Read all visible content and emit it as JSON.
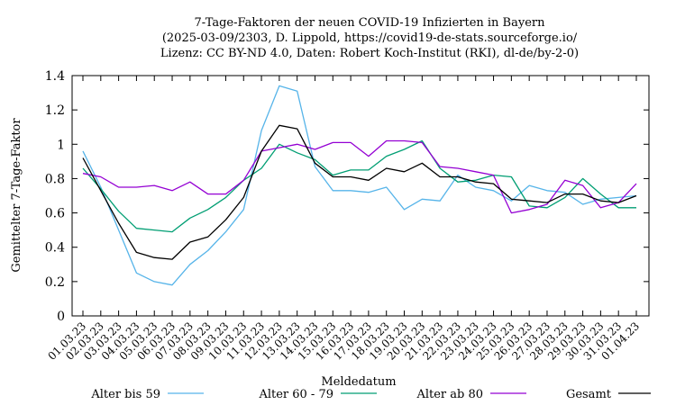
{
  "chart_data": {
    "type": "line",
    "title_lines": [
      "7-Tage-Faktoren der neuen COVID-19 Infizierten in Bayern",
      "(2025-03-09/2303, D. Lippold, https://covid19-de-stats.sourceforge.io/",
      "Lizenz: CC BY-ND 4.0, Daten: Robert Koch-Institut (RKI), dl-de/by-2-0)"
    ],
    "xlabel": "Meldedatum",
    "ylabel": "Gemittelter 7-Tage-Faktor",
    "ylim": [
      0,
      1.4
    ],
    "yticks": [
      "0",
      "0.2",
      "0.4",
      "0.6",
      "0.8",
      "1",
      "1.2",
      "1.4"
    ],
    "categories": [
      "01.03.23",
      "02.03.23",
      "03.03.23",
      "04.03.23",
      "05.03.23",
      "06.03.23",
      "07.03.23",
      "08.03.23",
      "09.03.23",
      "10.03.23",
      "11.03.23",
      "12.03.23",
      "13.03.23",
      "14.03.23",
      "15.03.23",
      "16.03.23",
      "17.03.23",
      "18.03.23",
      "19.03.23",
      "20.03.23",
      "21.03.23",
      "22.03.23",
      "23.03.23",
      "24.03.23",
      "25.03.23",
      "26.03.23",
      "27.03.23",
      "28.03.23",
      "29.03.23",
      "30.03.23",
      "31.03.23",
      "01.04.23"
    ],
    "grid": false,
    "legend_position": "bottom",
    "series": [
      {
        "name": "Alter bis 59",
        "color": "#56b4e9",
        "values": [
          0.96,
          0.75,
          0.5,
          0.25,
          0.2,
          0.18,
          0.3,
          0.38,
          0.49,
          0.62,
          1.08,
          1.34,
          1.31,
          0.87,
          0.73,
          0.73,
          0.72,
          0.75,
          0.62,
          0.68,
          0.67,
          0.82,
          0.75,
          0.73,
          0.67,
          0.76,
          0.73,
          0.72,
          0.65,
          0.68,
          0.69,
          0.7
        ]
      },
      {
        "name": "Alter 60 - 79",
        "color": "#009e73",
        "values": [
          0.86,
          0.74,
          0.61,
          0.51,
          0.5,
          0.49,
          0.57,
          0.62,
          0.69,
          0.79,
          0.86,
          1.0,
          0.95,
          0.91,
          0.82,
          0.85,
          0.85,
          0.93,
          0.97,
          1.02,
          0.86,
          0.78,
          0.79,
          0.82,
          0.81,
          0.64,
          0.63,
          0.69,
          0.8,
          0.71,
          0.63,
          0.63
        ]
      },
      {
        "name": "Alter ab 80",
        "color": "#9400d3",
        "values": [
          0.83,
          0.81,
          0.75,
          0.75,
          0.76,
          0.73,
          0.78,
          0.71,
          0.71,
          0.79,
          0.96,
          0.98,
          1.0,
          0.97,
          1.01,
          1.01,
          0.93,
          1.02,
          1.02,
          1.01,
          0.87,
          0.86,
          0.84,
          0.82,
          0.6,
          0.62,
          0.65,
          0.79,
          0.76,
          0.63,
          0.66,
          0.77
        ]
      },
      {
        "name": "Gesamt",
        "color": "#000000",
        "values": [
          0.92,
          0.73,
          0.54,
          0.37,
          0.34,
          0.33,
          0.43,
          0.46,
          0.56,
          0.69,
          0.96,
          1.11,
          1.09,
          0.89,
          0.81,
          0.81,
          0.79,
          0.86,
          0.84,
          0.89,
          0.81,
          0.81,
          0.78,
          0.77,
          0.68,
          0.67,
          0.66,
          0.71,
          0.71,
          0.67,
          0.66,
          0.7
        ]
      }
    ]
  }
}
